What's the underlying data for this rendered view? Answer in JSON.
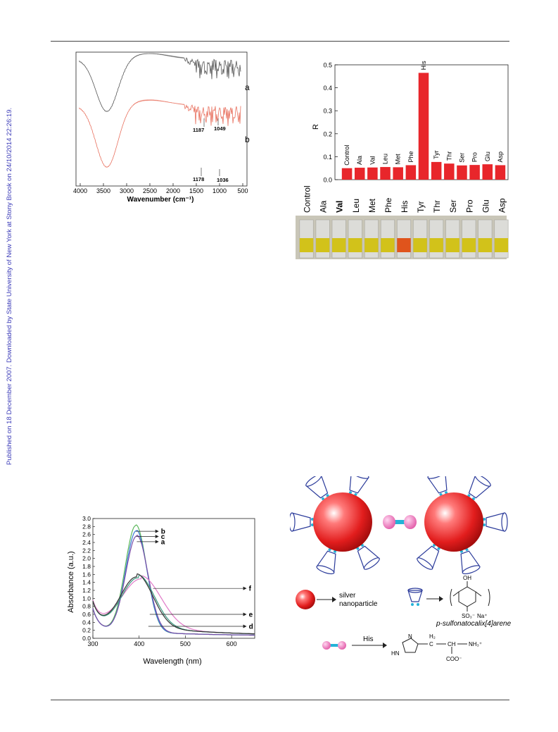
{
  "side_note": "Published on 18 December 2007. Downloaded by State University of New York at Stony Brook on 24/10/2014 22:26:19.",
  "ftir": {
    "xlabel": "Wavenumber (cm⁻¹)",
    "xticks": [
      "4000",
      "3500",
      "3000",
      "2500",
      "2000",
      "1500",
      "1000",
      "500"
    ],
    "curve_labels": [
      "a",
      "b"
    ],
    "peaks_a": [
      "1187",
      "1049"
    ],
    "peaks_b": [
      "1178",
      "1036"
    ]
  },
  "chart_data": [
    {
      "type": "bar",
      "ylabel": "R",
      "ylim": [
        0,
        0.5
      ],
      "yticks": [
        "0.0",
        "0.1",
        "0.2",
        "0.3",
        "0.4",
        "0.5"
      ],
      "categories": [
        "Control",
        "Ala",
        "Val",
        "Leu",
        "Met",
        "Phe",
        "His",
        "Tyr",
        "Thr",
        "Ser",
        "Pro",
        "Glu",
        "Asp"
      ],
      "values": [
        0.05,
        0.052,
        0.053,
        0.055,
        0.054,
        0.063,
        0.465,
        0.077,
        0.07,
        0.062,
        0.064,
        0.067,
        0.063
      ],
      "color": "#e8262b",
      "vial_labels": [
        "Control",
        "Ala",
        "Val",
        "Leu",
        "Met",
        "Phe",
        "His",
        "Tyr",
        "Thr",
        "Ser",
        "Pro",
        "Glu",
        "Asp"
      ]
    },
    {
      "type": "line",
      "xlabel": "Wavelength (nm)",
      "ylabel": "Absorbance (a.u.)",
      "xlim": [
        300,
        650
      ],
      "ylim": [
        0,
        3.0
      ],
      "xticks": [
        "300",
        "400",
        "500",
        "600"
      ],
      "yticks": [
        "0.0",
        "0.2",
        "0.4",
        "0.6",
        "0.8",
        "1.0",
        "1.2",
        "1.4",
        "1.6",
        "1.8",
        "2.0",
        "2.2",
        "2.4",
        "2.6",
        "2.8",
        "3.0"
      ],
      "series": [
        {
          "name": "b",
          "peak_x": 393,
          "peak_y": 2.68,
          "width": 30,
          "color": "#5cb85c"
        },
        {
          "name": "c",
          "peak_x": 394,
          "peak_y": 2.55,
          "width": 30,
          "color": "#3a7bd5"
        },
        {
          "name": "a",
          "peak_x": 395,
          "peak_y": 2.42,
          "width": 31,
          "color": "#7a4ea8"
        },
        {
          "name": "f",
          "peak_x": 405,
          "peak_y": 1.26,
          "width": 55,
          "color": "#e07ac8"
        },
        {
          "name": "e",
          "peak_x": 398,
          "peak_y": 1.28,
          "width": 46,
          "color": "#3a9a80"
        },
        {
          "name": "d",
          "peak_x": 395,
          "peak_y": 1.3,
          "width": 45,
          "color": "#333333"
        }
      ]
    }
  ],
  "scheme": {
    "legend_silver": [
      "silver",
      "nanoparticle"
    ],
    "legend_calix": "p-sulfonatocalix[4]arene",
    "his_label": "His",
    "struct_oh": "OH",
    "struct_so3": "SO₃⁻",
    "struct_na": "Na⁺",
    "struct_ch2": "H₂",
    "struct_c": "C",
    "struct_ch": "CH",
    "struct_nh3": "NH₃⁺",
    "struct_coo": "COO⁻",
    "struct_n": "N",
    "struct_hn": "HN"
  }
}
